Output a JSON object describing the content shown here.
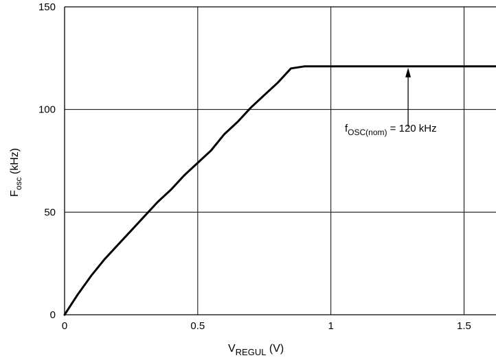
{
  "chart_data": {
    "type": "line",
    "xlabel": "VREGUL (V)",
    "ylabel": "Fosc (kHz)",
    "xlim": [
      0,
      1.62
    ],
    "ylim": [
      0,
      150
    ],
    "x_ticks": [
      "0",
      "0.5",
      "1",
      "1.5"
    ],
    "y_ticks": [
      "0",
      "50",
      "100",
      "150"
    ],
    "grid": true,
    "series": [
      {
        "x": [
          0,
          0.05,
          0.1,
          0.15,
          0.2,
          0.25,
          0.3,
          0.35,
          0.4,
          0.45,
          0.5,
          0.55,
          0.6,
          0.65,
          0.7,
          0.75,
          0.8,
          0.85,
          0.9,
          1.0,
          1.2,
          1.4,
          1.62
        ],
        "y": [
          0,
          10,
          19,
          27,
          34,
          41,
          48,
          55,
          61,
          68,
          74,
          80,
          88,
          94,
          101,
          107,
          113,
          120,
          121,
          121,
          121,
          121,
          121
        ]
      }
    ],
    "annotation": {
      "text_main": "f",
      "text_sub": "OSC(nom)",
      "text_rest": " = 120 kHz",
      "x": 1.29,
      "y": 121
    }
  },
  "labels": {
    "x_main": "V",
    "x_sub": "REGUL",
    "x_rest": " (V)",
    "y_main": "F",
    "y_sub": "osc",
    "y_rest": " (kHz)"
  }
}
